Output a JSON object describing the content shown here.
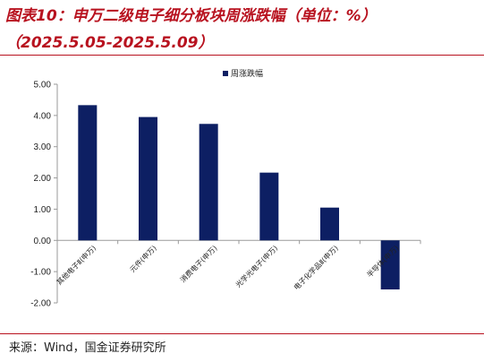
{
  "title": {
    "line1": "图表10：申万二级电子细分板块周涨跌幅（单位：%）",
    "line2": "（2025.5.05-2025.5.09）"
  },
  "source": "来源：Wind，国金证券研究所",
  "colors": {
    "title": "#b8121f",
    "bar": "#0d1f63",
    "axis": "#9a9a9a"
  },
  "chart_data": {
    "type": "bar",
    "categories": [
      "其他电子Ⅱ(申万)",
      "元件(申万)",
      "消费电子(申万)",
      "光学光电子(申万)",
      "电子化学品Ⅱ(申万)",
      "半导体(申万)"
    ],
    "series": [
      {
        "name": "周涨跌幅",
        "values": [
          4.33,
          3.95,
          3.73,
          2.17,
          1.05,
          -1.57
        ]
      }
    ],
    "yticks": [
      "5.00",
      "4.00",
      "3.00",
      "2.00",
      "1.00",
      "0.00",
      "-1.00",
      "-2.00"
    ],
    "ylim": [
      -2,
      5
    ],
    "grid": false,
    "legend": "top-center"
  }
}
